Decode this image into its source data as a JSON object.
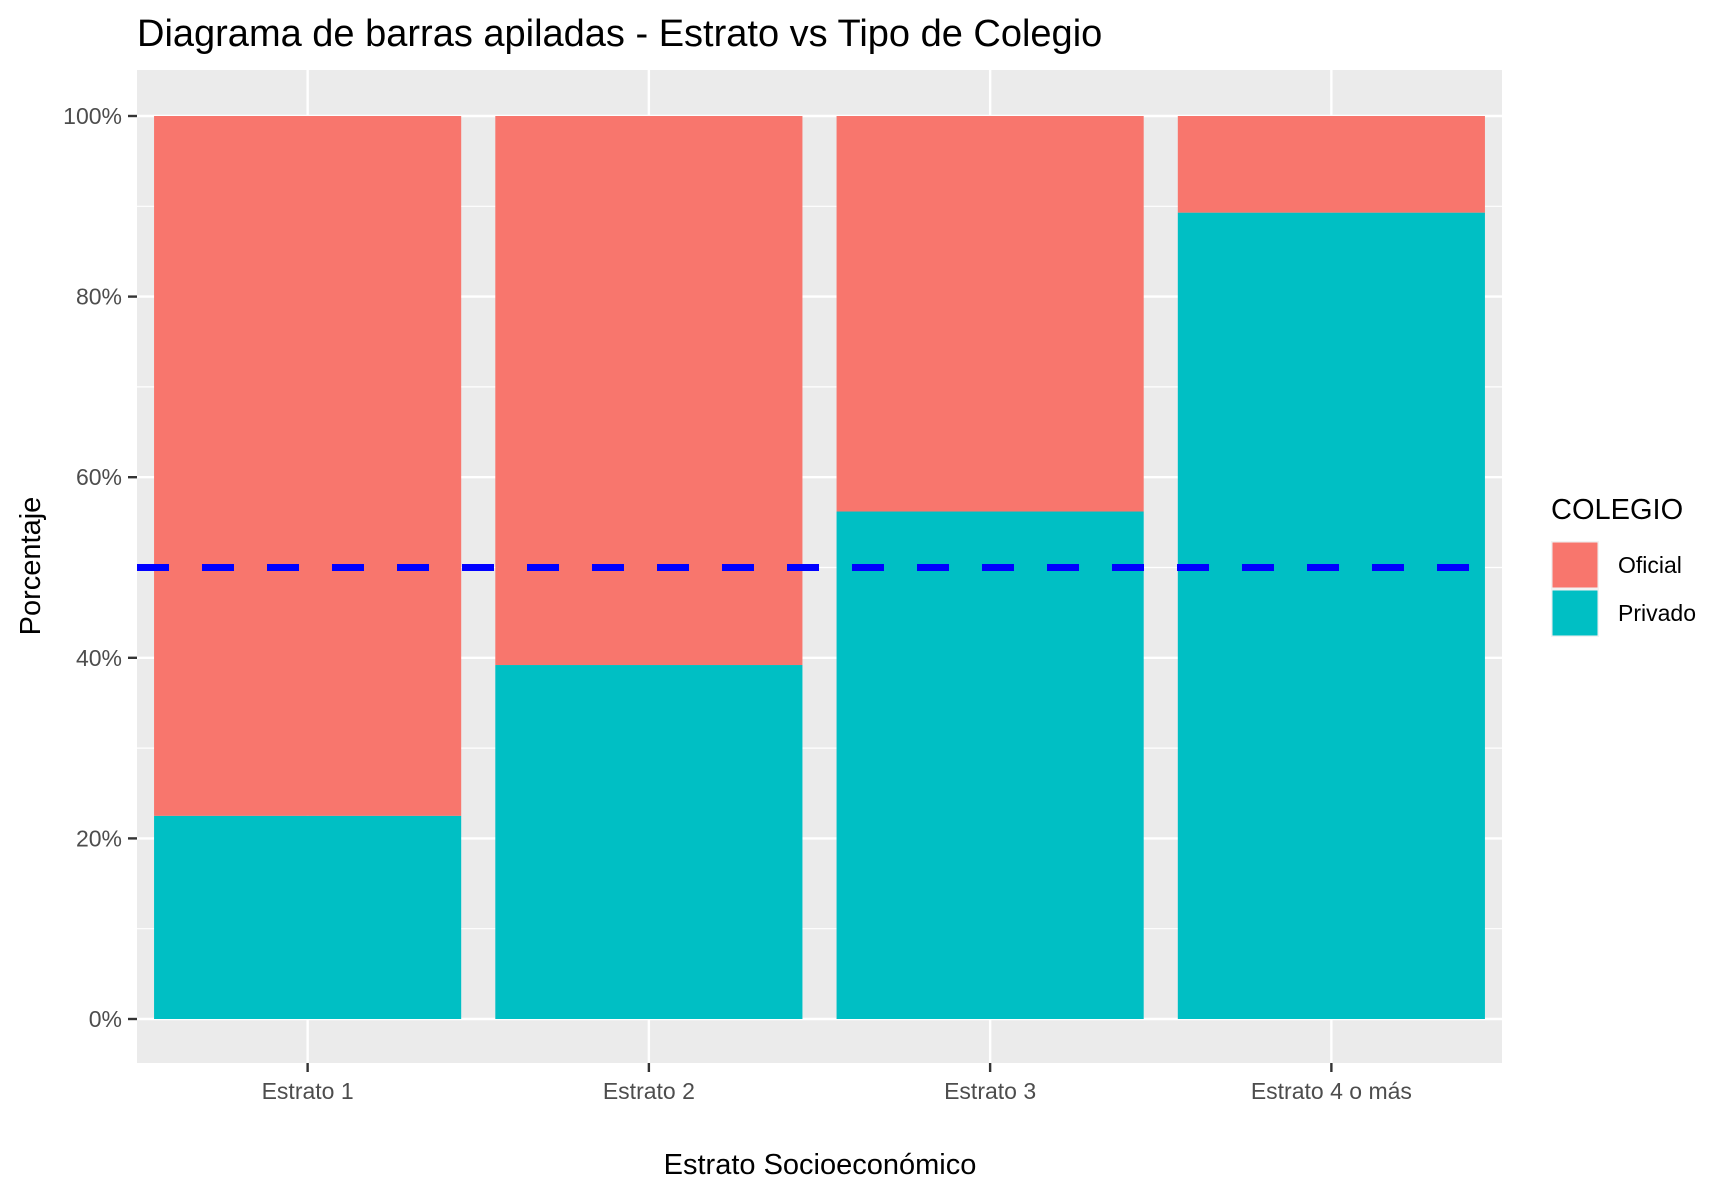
{
  "chart_data": {
    "type": "bar",
    "stacked": true,
    "title": "Diagrama de barras apiladas - Estrato vs Tipo de Colegio",
    "xlabel": "Estrato Socioeconómico",
    "ylabel": "Porcentaje",
    "categories": [
      "Estrato 1",
      "Estrato 2",
      "Estrato 3",
      "Estrato 4 o más"
    ],
    "series": [
      {
        "name": "Privado",
        "color": "#00BFC4",
        "values": [
          22.5,
          39.2,
          56.2,
          89.3
        ]
      },
      {
        "name": "Oficial",
        "color": "#F8766D",
        "values": [
          77.5,
          60.8,
          43.8,
          10.7
        ]
      }
    ],
    "ylim": [
      0,
      100
    ],
    "yticks": [
      0,
      20,
      40,
      60,
      80,
      100
    ],
    "ytick_labels": [
      "0%",
      "20%",
      "40%",
      "60%",
      "80%",
      "100%"
    ],
    "reference_line": {
      "y": 50,
      "color": "#0000FF",
      "style": "dashed"
    },
    "legend": {
      "title": "COLEGIO",
      "position": "right",
      "items": [
        {
          "label": "Oficial",
          "color": "#F8766D"
        },
        {
          "label": "Privado",
          "color": "#00BFC4"
        }
      ]
    },
    "grid": true,
    "panel_background": "#EBEBEB"
  }
}
